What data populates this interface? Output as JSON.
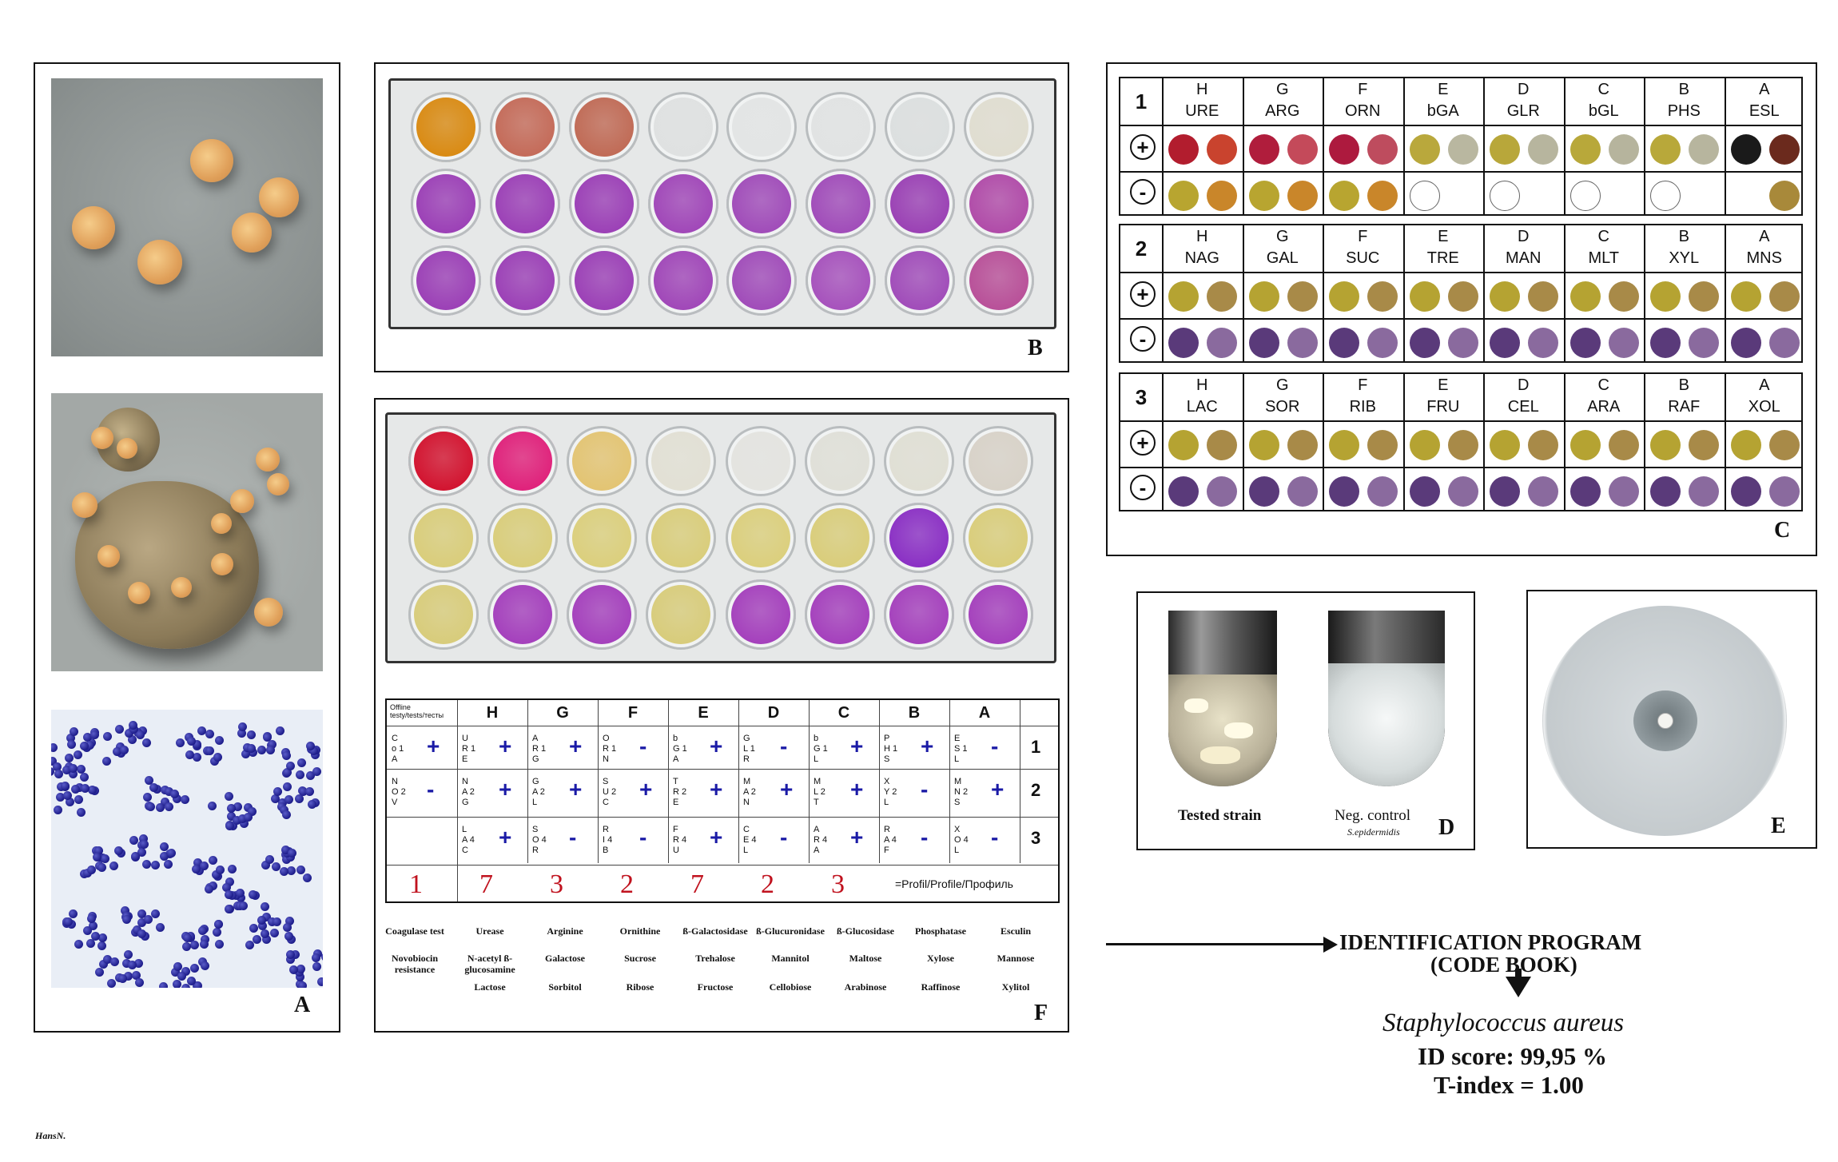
{
  "panels": {
    "a": "A",
    "b": "B",
    "c": "C",
    "d": "D",
    "e": "E",
    "f": "F"
  },
  "chart_c": {
    "groups": [
      {
        "num": "1",
        "letters": [
          "H",
          "G",
          "F",
          "E",
          "D",
          "C",
          "B",
          "A"
        ],
        "codes": [
          "URE",
          "ARG",
          "ORN",
          "bGA",
          "GLR",
          "bGL",
          "PHS",
          "ESL"
        ],
        "plus": [
          [
            "#b21d2e",
            "#c9432e"
          ],
          [
            "#b01d3c",
            "#c44a5a"
          ],
          [
            "#ad1a3e",
            "#be4c5e"
          ],
          [
            "#b9a83c",
            "#b9b7a0"
          ],
          [
            "#b8a73a",
            "#b7b59e"
          ],
          [
            "#b8a83a",
            "#b6b49d"
          ],
          [
            "#b8a83a",
            "#b7b59e"
          ],
          [
            "#1a1a1a",
            "#6b2a1d"
          ]
        ],
        "minus": [
          [
            "#b8a530",
            "#c9862a"
          ],
          [
            "#b8a530",
            "#c9862a"
          ],
          [
            "#b8a530",
            "#c9862a"
          ],
          [
            "#ffffff",
            ""
          ],
          [
            "#ffffff",
            ""
          ],
          [
            "#ffffff",
            ""
          ],
          [
            "#ffffff",
            ""
          ],
          [
            "",
            "#a8893a"
          ]
        ]
      },
      {
        "num": "2",
        "letters": [
          "H",
          "G",
          "F",
          "E",
          "D",
          "C",
          "B",
          "A"
        ],
        "codes": [
          "NAG",
          "GAL",
          "SUC",
          "TRE",
          "MAN",
          "MLT",
          "XYL",
          "MNS"
        ],
        "plus": [
          [
            "#b5a332",
            "#a88a48"
          ],
          [
            "#b5a332",
            "#a88a48"
          ],
          [
            "#b5a332",
            "#a88a48"
          ],
          [
            "#b5a332",
            "#a88a48"
          ],
          [
            "#b5a332",
            "#a88a48"
          ],
          [
            "#b5a332",
            "#a88a48"
          ],
          [
            "#b5a332",
            "#a88a48"
          ],
          [
            "#b5a332",
            "#a88a48"
          ]
        ],
        "minus": [
          [
            "#5a3a7a",
            "#8a6a9e"
          ],
          [
            "#5a3a7a",
            "#8a6a9e"
          ],
          [
            "#5a3a7a",
            "#8a6a9e"
          ],
          [
            "#5a3a7a",
            "#8a6a9e"
          ],
          [
            "#5a3a7a",
            "#8a6a9e"
          ],
          [
            "#5a3a7a",
            "#8a6a9e"
          ],
          [
            "#5a3a7a",
            "#8a6a9e"
          ],
          [
            "#5a3a7a",
            "#8a6a9e"
          ]
        ]
      },
      {
        "num": "3",
        "letters": [
          "H",
          "G",
          "F",
          "E",
          "D",
          "C",
          "B",
          "A"
        ],
        "codes": [
          "LAC",
          "SOR",
          "RIB",
          "FRU",
          "CEL",
          "ARA",
          "RAF",
          "XOL"
        ],
        "plus": [
          [
            "#b5a332",
            "#a88a48"
          ],
          [
            "#b5a332",
            "#a88a48"
          ],
          [
            "#b5a332",
            "#a88a48"
          ],
          [
            "#b5a332",
            "#a88a48"
          ],
          [
            "#b5a332",
            "#a88a48"
          ],
          [
            "#b5a332",
            "#a88a48"
          ],
          [
            "#b5a332",
            "#a88a48"
          ],
          [
            "#b5a332",
            "#a88a48"
          ]
        ],
        "minus": [
          [
            "#5a3a7a",
            "#8a6a9e"
          ],
          [
            "#5a3a7a",
            "#8a6a9e"
          ],
          [
            "#5a3a7a",
            "#8a6a9e"
          ],
          [
            "#5a3a7a",
            "#8a6a9e"
          ],
          [
            "#5a3a7a",
            "#8a6a9e"
          ],
          [
            "#5a3a7a",
            "#8a6a9e"
          ],
          [
            "#5a3a7a",
            "#8a6a9e"
          ],
          [
            "#5a3a7a",
            "#8a6a9e"
          ]
        ]
      }
    ],
    "plus_sign": "+",
    "minus_sign": "-"
  },
  "plate_b": {
    "rows": [
      [
        "#d98a12",
        "#c46a58",
        "#c06a55",
        "#dfe1e1",
        "#e3e5e5",
        "#e1e3e3",
        "#dcdfdf",
        "#e0ddd0"
      ],
      [
        "#9b3fb6",
        "#9b3fb6",
        "#9b3fb6",
        "#a046b8",
        "#a04bb9",
        "#a04bb9",
        "#9a40b4",
        "#b04aa8"
      ],
      [
        "#9b3fb6",
        "#9b3fb6",
        "#9b3fb6",
        "#a046b8",
        "#a04bb9",
        "#a651bc",
        "#a04bb9",
        "#b84f98"
      ]
    ]
  },
  "plate_f": {
    "rows": [
      [
        "#d2122e",
        "#e0207a",
        "#e3c472",
        "#e2e0d4",
        "#e4e4e0",
        "#e0e0d8",
        "#e0dfd4",
        "#d8d2c8"
      ],
      [
        "#d9cd7a",
        "#d9cd7a",
        "#dbcf7c",
        "#d9cd7a",
        "#dbcf7c",
        "#d9cd7a",
        "#8a2fc4",
        "#d9cd7a"
      ],
      [
        "#d8cc7a",
        "#a43fbc",
        "#a43fbc",
        "#d8cc7a",
        "#a43fbc",
        "#a43fbc",
        "#a43fbc",
        "#a43fbc"
      ]
    ]
  },
  "table_f": {
    "header_label": "Offline\ntesty/tests/тесты",
    "letters": [
      "H",
      "G",
      "F",
      "E",
      "D",
      "C",
      "B",
      "A"
    ],
    "first_col": [
      "C\no 1\nA",
      "N\nO 2\nV",
      ""
    ],
    "first_sign": [
      "+",
      "-",
      ""
    ],
    "tests": [
      [
        [
          "U\nR 1\nE",
          "+"
        ],
        [
          "A\nR 1\nG",
          "+"
        ],
        [
          "O\nR 1\nN",
          "-"
        ],
        [
          "b\nG 1\nA",
          "+"
        ],
        [
          "G\nL 1\nR",
          "-"
        ],
        [
          "b\nG 1\nL",
          "+"
        ],
        [
          "P\nH 1\nS",
          "+"
        ],
        [
          "E\nS 1\nL",
          "-"
        ]
      ],
      [
        [
          "N\nA 2\nG",
          "+"
        ],
        [
          "G\nA 2\nL",
          "+"
        ],
        [
          "S\nU 2\nC",
          "+"
        ],
        [
          "T\nR 2\nE",
          "+"
        ],
        [
          "M\nA 2\nN",
          "+"
        ],
        [
          "M\nL 2\nT",
          "+"
        ],
        [
          "X\nY 2\nL",
          "-"
        ],
        [
          "M\nN 2\nS",
          "+"
        ]
      ],
      [
        [
          "L\nA 4\nC",
          "+"
        ],
        [
          "S\nO 4\nR",
          "-"
        ],
        [
          "R\nI 4\nB",
          "-"
        ],
        [
          "F\nR 4\nU",
          "+"
        ],
        [
          "C\nE 4\nL",
          "-"
        ],
        [
          "A\nR 4\nA",
          "+"
        ],
        [
          "R\nA 4\nF",
          "-"
        ],
        [
          "X\nO 4\nL",
          "-"
        ]
      ]
    ],
    "row_numbers": [
      "1",
      "2",
      "3"
    ],
    "profile": [
      "1",
      "7",
      "3",
      "2",
      "7",
      "2",
      "3"
    ],
    "profile_label": "=Profil/Profile/Профиль"
  },
  "legend_f": [
    [
      "Coagulase test",
      "Urease",
      "Arginine",
      "Ornithine",
      "ß-Galactosidase",
      "ß-Glucuronidase",
      "ß-Glucosidase",
      "Phosphatase",
      "Esculin"
    ],
    [
      "Novobiocin resistance",
      "N-acetyl ß-glucosamine",
      "Galactose",
      "Sucrose",
      "Trehalose",
      "Mannitol",
      "Maltose",
      "Xylose",
      "Mannose"
    ],
    [
      "",
      "Lactose",
      "Sorbitol",
      "Ribose",
      "Fructose",
      "Cellobiose",
      "Arabinose",
      "Raffinose",
      "Xylitol"
    ]
  ],
  "panel_d": {
    "left": "Tested strain",
    "right": "Neg. control",
    "right_sub": "S.epidermidis"
  },
  "result": {
    "program_line1": "IDENTIFICATION PROGRAM",
    "program_line2": "(CODE BOOK)",
    "organism": "Staphylococcus aureus",
    "score": "ID score: 99,95 %",
    "tindex": "T-index = 1.00"
  },
  "signature": "HansN."
}
